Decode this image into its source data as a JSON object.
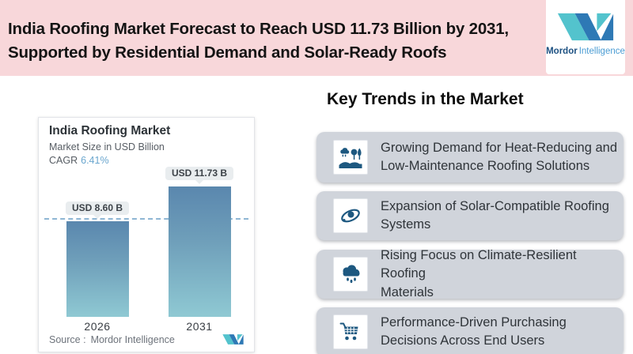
{
  "banner": {
    "bg_color": "#f8d7da",
    "title_lines": [
      "India Roofing Market Forecast to Reach USD 11.73 Billion by 2031,",
      "Supported by Residential Demand and Solar-Ready Roofs"
    ]
  },
  "logo": {
    "brand_bold": "Mordor",
    "brand_light": "Intelligence",
    "teal": "#53c3cd",
    "blue": "#2e79b5"
  },
  "chart_card": {
    "title": "India Roofing Market",
    "subtitle": "Market Size in USD Billion",
    "cagr_label": "CAGR",
    "cagr_value": "6.41%",
    "source_label": "Source :",
    "source_value": "Mordor Intelligence"
  },
  "chart_data": {
    "type": "bar",
    "title": "India Roofing Market",
    "subtitle": "Market Size in USD Billion",
    "unit": "USD Billion",
    "cagr_percent": 6.41,
    "categories": [
      "2026",
      "2031"
    ],
    "values": [
      8.6,
      11.73
    ],
    "value_labels": [
      "USD 8.60 B",
      "USD 11.73 B"
    ],
    "ylim": [
      0,
      13
    ],
    "reference_line_at": 8.6,
    "grid": false,
    "legend": false,
    "bar_color_top": "#5a87ae",
    "bar_color_bottom": "#8fc9d3",
    "reference_line_color": "#8fb6d4"
  },
  "trends": {
    "heading": "Key Trends in the Market",
    "items": [
      {
        "icon": "landscape-rain-trees-icon",
        "lines": [
          "Growing Demand for Heat-Reducing and",
          "Low-Maintenance Roofing Solutions"
        ]
      },
      {
        "icon": "galaxy-orbit-icon",
        "lines": [
          "Expansion of Solar-Compatible Roofing",
          "Systems"
        ]
      },
      {
        "icon": "rain-cloud-icon",
        "lines": [
          "Rising Focus on Climate-Resilient Roofing",
          "Materials"
        ]
      },
      {
        "icon": "shopping-cart-icon",
        "lines": [
          "Performance-Driven Purchasing",
          "Decisions Across End Users"
        ]
      }
    ]
  }
}
